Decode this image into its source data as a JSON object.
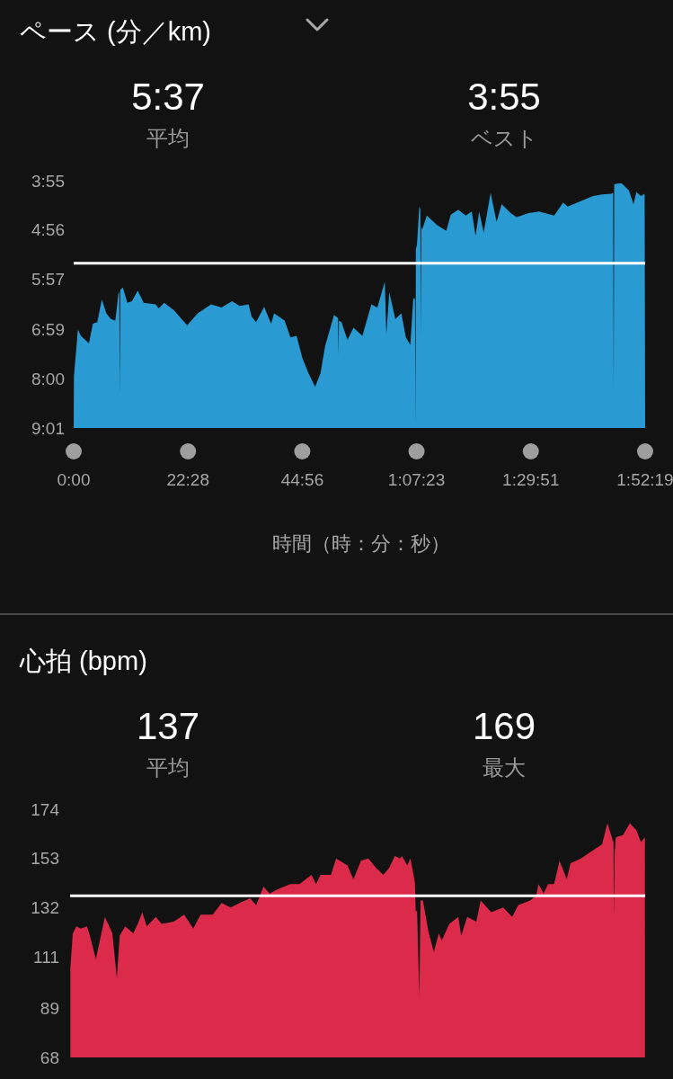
{
  "chart_data": [
    {
      "type": "area",
      "title": "ペース (分／km)",
      "xlabel": "時間（時：分：秒）",
      "annotations": [
        "5:37",
        "平均",
        "3:55",
        "ベスト"
      ],
      "color": "#2a9ad2",
      "x": [
        0,
        3,
        50,
        85,
        180,
        226,
        279,
        332,
        385,
        438,
        491,
        527,
        538,
        544,
        550,
        580,
        633,
        686,
        755,
        826,
        967,
        1003,
        1067,
        1179,
        1338,
        1462,
        1621,
        1745,
        1868,
        1957,
        2063,
        2098,
        2151,
        2246,
        2328,
        2363,
        2487,
        2557,
        2628,
        2699,
        2769,
        2847,
        2911,
        2964,
        3070,
        3118,
        3123,
        3128,
        3158,
        3229,
        3299,
        3405,
        3511,
        3581,
        3669,
        3687,
        3722,
        3793,
        3864,
        3917,
        3970,
        4005,
        4025,
        4030,
        4035,
        4048,
        4076,
        4088,
        4093,
        4099,
        4111,
        4164,
        4288,
        4394,
        4447,
        4535,
        4623,
        4694,
        4739,
        4782,
        4835,
        4917,
        4987,
        5047,
        5153,
        5224,
        5365,
        5489,
        5666,
        5772,
        5825,
        5984,
        6125,
        6231,
        6337,
        6362,
        6368,
        6374,
        6390,
        6460,
        6548,
        6601,
        6636,
        6689,
        6733,
        6739
      ],
      "values": [
        541,
        477,
        419,
        427,
        436,
        412,
        410,
        382,
        399,
        406,
        408,
        375,
        372,
        501,
        370,
        367,
        386,
        384,
        371,
        386,
        388,
        393,
        386,
        395,
        414,
        399,
        388,
        392,
        384,
        390,
        388,
        403,
        410,
        391,
        412,
        399,
        408,
        429,
        427,
        455,
        473,
        490,
        473,
        440,
        401,
        405,
        451,
        408,
        410,
        432,
        417,
        427,
        388,
        392,
        360,
        425,
        373,
        406,
        399,
        429,
        438,
        380,
        382,
        540,
        320,
        314,
        267,
        270,
        423,
        292,
        295,
        278,
        290,
        297,
        277,
        271,
        278,
        273,
        303,
        273,
        299,
        250,
        286,
        264,
        275,
        280,
        275,
        273,
        278,
        262,
        267,
        260,
        254,
        252,
        251,
        250,
        495,
        240,
        239,
        238,
        247,
        264,
        249,
        254,
        251,
        541
      ],
      "xlim": [
        0,
        6739
      ],
      "xticks": [
        {
          "value": 0,
          "label": "0:00"
        },
        {
          "value": 1348,
          "label": "22:28"
        },
        {
          "value": 2696,
          "label": "44:56"
        },
        {
          "value": 4043,
          "label": "1:07:23"
        },
        {
          "value": 5391,
          "label": "1:29:51"
        },
        {
          "value": 6739,
          "label": "1:52:19"
        }
      ],
      "ylim": [
        541,
        235
      ],
      "yticks": [
        {
          "value": 235,
          "label": "3:55"
        },
        {
          "value": 296,
          "label": "4:56"
        },
        {
          "value": 357,
          "label": "5:57"
        },
        {
          "value": 419,
          "label": "6:59"
        },
        {
          "value": 480,
          "label": "8:00"
        },
        {
          "value": 541,
          "label": "9:01"
        }
      ],
      "ref_lines": [
        {
          "axis": "y",
          "value": 337,
          "color": "#ffffff"
        }
      ]
    },
    {
      "type": "area",
      "title": "心拍 (bpm)",
      "annotations": [
        "137",
        "平均",
        "169",
        "最大"
      ],
      "color": "#dc2b4a",
      "x": [
        3,
        32,
        74,
        126,
        197,
        232,
        302,
        408,
        495,
        548,
        582,
        646,
        740,
        793,
        846,
        898,
        1004,
        1074,
        1214,
        1337,
        1443,
        1530,
        1671,
        1776,
        1882,
        1987,
        2109,
        2180,
        2267,
        2338,
        2443,
        2583,
        2688,
        2829,
        2882,
        2935,
        3057,
        3117,
        3251,
        3320,
        3409,
        3496,
        3583,
        3672,
        3741,
        3805,
        3865,
        3889,
        3952,
        3988,
        4040,
        4051,
        4066,
        4093,
        4107,
        4135,
        4198,
        4262,
        4321,
        4356,
        4444,
        4549,
        4584,
        4654,
        4760,
        4812,
        4935,
        5075,
        5181,
        5251,
        5391,
        5462,
        5489,
        5549,
        5602,
        5672,
        5736,
        5820,
        5865,
        5988,
        6111,
        6234,
        6297,
        6357,
        6368,
        6374,
        6381,
        6395,
        6479,
        6560,
        6637,
        6690,
        6736
      ],
      "values": [
        106,
        121,
        124,
        123,
        124,
        120,
        110,
        128,
        121,
        102,
        120,
        124,
        121,
        125,
        130,
        124,
        128,
        125,
        126,
        129,
        123,
        129,
        129,
        134,
        132,
        134,
        136,
        133,
        141,
        138,
        140,
        142,
        142,
        146,
        142,
        146,
        146,
        153,
        150,
        144,
        152,
        153,
        149,
        146,
        149,
        154,
        153,
        154,
        150,
        153,
        143,
        130,
        131,
        94,
        135,
        135,
        122,
        113,
        121,
        118,
        125,
        128,
        120,
        128,
        126,
        135,
        130,
        132,
        128,
        133,
        135,
        137,
        142,
        138,
        142,
        142,
        152,
        144,
        151,
        153,
        156,
        159,
        168,
        161,
        160,
        128,
        155,
        162,
        163,
        168,
        165,
        160,
        162
      ],
      "xlim": [
        0,
        6739
      ],
      "ylim": [
        68,
        174
      ],
      "yticks": [
        68,
        89,
        111,
        132,
        153,
        174
      ],
      "tick_labels": "y",
      "ref_lines": [
        {
          "axis": "y",
          "value": 137,
          "color": "#ffffff"
        }
      ]
    }
  ]
}
